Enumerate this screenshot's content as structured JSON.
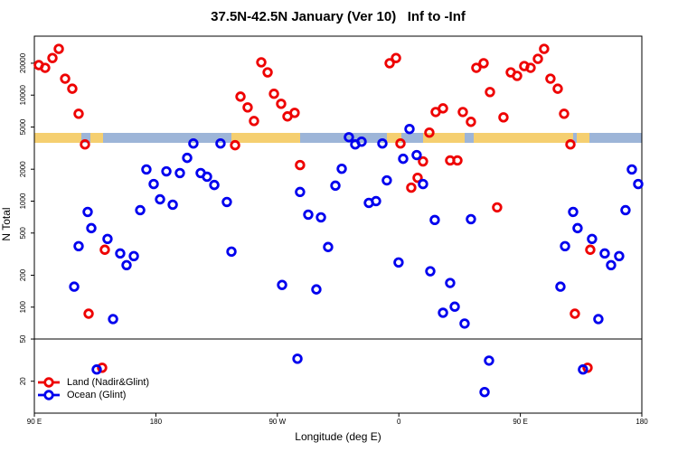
{
  "chart_data": {
    "type": "scatter",
    "title": "37.5N-42.5N January (Ver 10)   Inf to -Inf",
    "x_label": "Longitude (deg E)",
    "y_label": "N Total",
    "xlim": [
      90,
      540
    ],
    "ylim": [
      10,
      36000
    ],
    "log_y": true,
    "hline": 50,
    "xticks": [
      {
        "value": 90,
        "label": "90 E"
      },
      {
        "value": 180,
        "label": "180"
      },
      {
        "value": 270,
        "label": "90 W"
      },
      {
        "value": 360,
        "label": "0"
      },
      {
        "value": 450,
        "label": "90 E"
      },
      {
        "value": 540,
        "label": "180"
      }
    ],
    "yticks": [
      20,
      50,
      100,
      200,
      500,
      1000,
      2000,
      5000,
      10000,
      20000
    ],
    "legend": "bottom-left",
    "series": [
      {
        "name": "Land (Nadir&Glint)",
        "color": "#ee0000",
        "x": [
          93.3,
          98.0,
          103.4,
          108.1,
          112.8,
          118.1,
          122.8,
          127.5,
          130.2,
          142.2,
          140.2,
          238.7,
          242.7,
          248.0,
          252.7,
          258.1,
          262.8,
          267.5,
          272.8,
          277.5,
          282.8,
          286.8,
          353.2,
          357.9,
          361.2,
          369.2,
          373.9,
          377.9,
          382.6,
          387.3,
          392.7,
          398.0,
          403.4,
          407.4,
          413.4,
          417.4,
          422.8,
          427.5,
          432.8,
          437.5,
          442.9,
          447.6,
          452.9,
          457.6,
          463.0,
          467.6,
          472.3,
          477.7,
          482.4,
          487.1,
          490.4,
          501.8,
          499.8
        ],
        "values": [
          19200,
          18100,
          22400,
          27300,
          14300,
          11500,
          6670,
          3430,
          86.7,
          348,
          26.8,
          3370,
          9680,
          7660,
          5700,
          20400,
          16400,
          10300,
          8280,
          6300,
          6810,
          2190,
          20000,
          22400,
          3500,
          1340,
          1660,
          2370,
          4430,
          6930,
          7500,
          2420,
          2420,
          6930,
          5600,
          18100,
          20000,
          10700,
          873,
          6170,
          16400,
          15200,
          18800,
          18100,
          22000,
          27300,
          14300,
          11500,
          6670,
          3430,
          86.7,
          348,
          26.8
        ]
      },
      {
        "name": "Ocean (Glint)",
        "color": "#0000ee",
        "x": [
          119.5,
          122.8,
          129.5,
          132.2,
          136.2,
          144.2,
          148.3,
          153.6,
          158.3,
          163.7,
          168.4,
          173.0,
          178.4,
          183.1,
          187.8,
          192.5,
          197.8,
          203.2,
          207.8,
          213.2,
          217.9,
          223.3,
          227.9,
          232.6,
          236.0,
          273.5,
          284.9,
          286.8,
          292.9,
          298.9,
          302.3,
          307.6,
          313.0,
          317.7,
          323.0,
          327.7,
          332.4,
          337.8,
          343.1,
          347.8,
          351.1,
          359.8,
          363.2,
          367.9,
          373.2,
          377.9,
          383.3,
          386.6,
          392.7,
          398.0,
          401.4,
          408.7,
          413.4,
          423.5,
          426.8,
          479.7,
          483.1,
          489.1,
          492.4,
          496.4,
          503.1,
          507.8,
          512.5,
          517.2,
          523.2,
          527.9,
          532.6,
          537.3
        ],
        "values": [
          156,
          376,
          791,
          556,
          25.8,
          440,
          77.1,
          321,
          249,
          303,
          822,
          1990,
          1450,
          1040,
          1910,
          925,
          1840,
          2560,
          3500,
          1840,
          1700,
          1420,
          3500,
          982,
          334,
          162,
          32.6,
          1220,
          746,
          147,
          703,
          369,
          1400,
          2020,
          4010,
          3430,
          3640,
          962,
          1000,
          3500,
          1570,
          264,
          2510,
          4790,
          2720,
          1450,
          218,
          664,
          88.5,
          169,
          101,
          70.0,
          676,
          15.8,
          31.3,
          156,
          376,
          791,
          556,
          25.8,
          440,
          77.1,
          321,
          249,
          303,
          822,
          1990,
          1450
        ]
      }
    ]
  }
}
